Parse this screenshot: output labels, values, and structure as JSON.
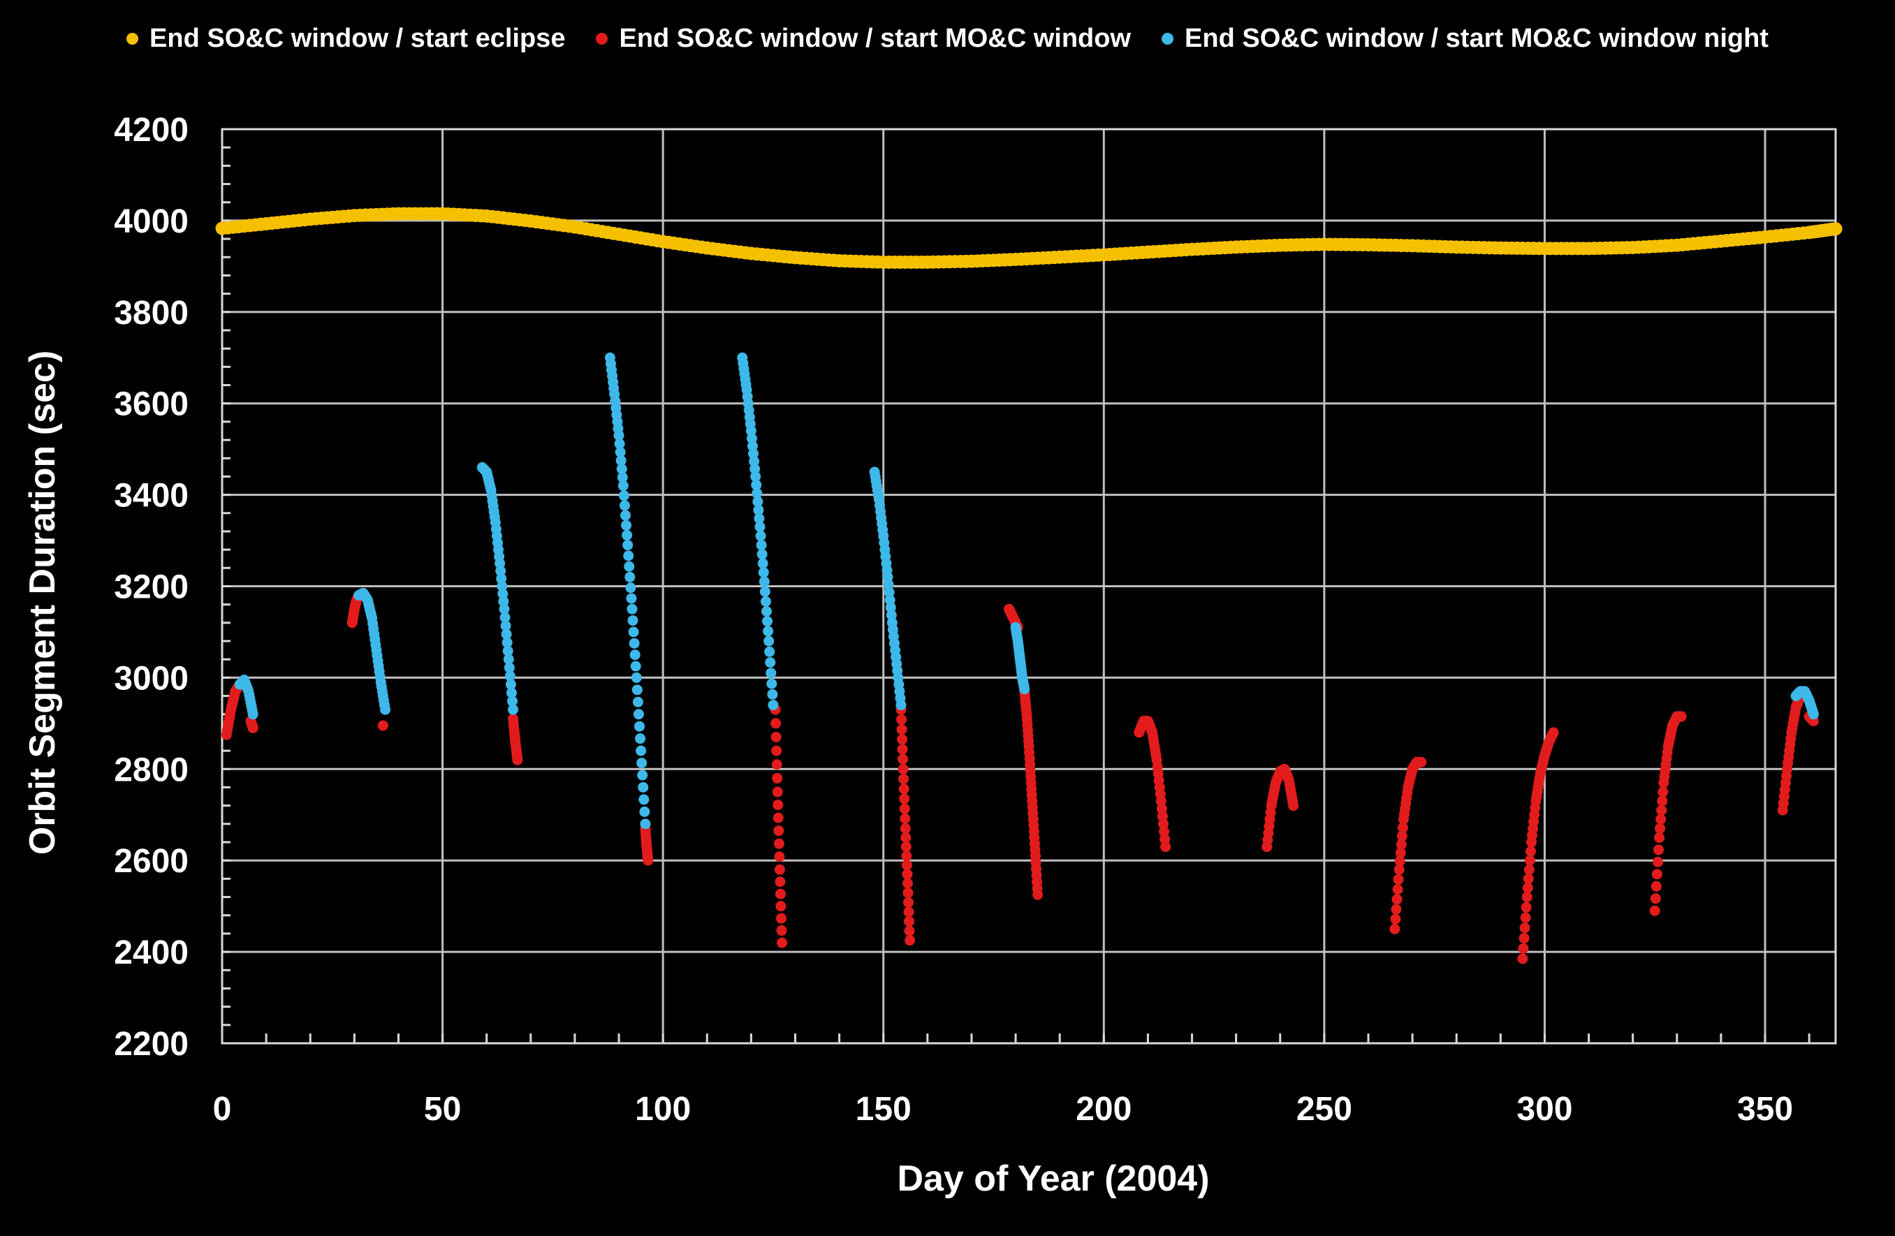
{
  "chart_data": {
    "type": "scatter",
    "xlabel": "Day of Year (2004)",
    "ylabel": "Orbit Segment Duration (sec)",
    "xlim": [
      0,
      366
    ],
    "ylim": [
      2200,
      4200
    ],
    "xticks": [
      "0",
      "50",
      "100",
      "150",
      "200",
      "250",
      "300",
      "350"
    ],
    "yticks": [
      "2200",
      "2400",
      "2600",
      "2800",
      "3000",
      "3200",
      "3400",
      "3600",
      "3800",
      "4000",
      "4200"
    ],
    "grid": true,
    "legend_position": "top-center",
    "series": [
      {
        "name": "End SO&C window / start eclipse",
        "color": "#F5C000",
        "x": [
          0,
          10,
          20,
          30,
          40,
          50,
          60,
          70,
          80,
          90,
          100,
          110,
          120,
          130,
          140,
          150,
          160,
          170,
          180,
          190,
          200,
          210,
          220,
          230,
          240,
          250,
          260,
          270,
          280,
          290,
          300,
          310,
          320,
          330,
          340,
          350,
          360,
          366
        ],
        "y": [
          3983,
          3993,
          4003,
          4011,
          4015,
          4015,
          4010,
          3999,
          3986,
          3970,
          3954,
          3940,
          3928,
          3919,
          3912,
          3909,
          3909,
          3911,
          3915,
          3920,
          3925,
          3931,
          3937,
          3942,
          3946,
          3948,
          3947,
          3945,
          3942,
          3940,
          3939,
          3939,
          3941,
          3946,
          3955,
          3964,
          3974,
          3982
        ]
      },
      {
        "name": "End SO&C window / start MO&C window",
        "color": "#E21C1C",
        "arcs": [
          {
            "x": [
              1,
              2,
              3,
              4
            ],
            "y": [
              2875,
              2930,
              2970,
              2985
            ]
          },
          {
            "x": [
              6.5,
              7
            ],
            "y": [
              2905,
              2890
            ]
          },
          {
            "x": [
              29.5,
              30,
              30.5,
              31
            ],
            "y": [
              3120,
              3150,
              3170,
              3180
            ]
          },
          {
            "x": [
              36.5
            ],
            "y": [
              2895
            ]
          },
          {
            "x": [
              66,
              66.5,
              67
            ],
            "y": [
              2910,
              2860,
              2820
            ]
          },
          {
            "x": [
              96,
              96.3,
              96.6
            ],
            "y": [
              2670,
              2630,
              2600
            ]
          },
          {
            "x": [
              125.5,
              126,
              126.5,
              127
            ],
            "y": [
              2930,
              2750,
              2580,
              2420
            ]
          },
          {
            "x": [
              154,
              154.5,
              155,
              155.5,
              156
            ],
            "y": [
              2930,
              2800,
              2670,
              2550,
              2425
            ]
          },
          {
            "x": [
              178.5,
              179.5,
              180.5
            ],
            "y": [
              3150,
              3130,
              3110
            ]
          },
          {
            "x": [
              182,
              182.5,
              183,
              183.5,
              184,
              184.5,
              185
            ],
            "y": [
              2970,
              2920,
              2850,
              2770,
              2690,
              2610,
              2525
            ]
          },
          {
            "x": [
              208,
              209,
              210,
              211,
              212,
              213,
              214
            ],
            "y": [
              2880,
              2905,
              2905,
              2880,
              2820,
              2730,
              2630
            ]
          },
          {
            "x": [
              237,
              238,
              239,
              240,
              241,
              242,
              243
            ],
            "y": [
              2630,
              2720,
              2770,
              2795,
              2800,
              2775,
              2720
            ]
          },
          {
            "x": [
              266,
              267,
              268,
              269,
              270,
              271,
              272
            ],
            "y": [
              2450,
              2580,
              2690,
              2760,
              2800,
              2815,
              2815
            ]
          },
          {
            "x": [
              295,
              296,
              297,
              298,
              299,
              300,
              301,
              302
            ],
            "y": [
              2385,
              2520,
              2640,
              2730,
              2790,
              2830,
              2860,
              2880
            ]
          },
          {
            "x": [
              325,
              326,
              327,
              328,
              329,
              330,
              331
            ],
            "y": [
              2490,
              2650,
              2770,
              2850,
              2895,
              2915,
              2915
            ]
          },
          {
            "x": [
              354,
              355,
              356,
              357,
              358
            ],
            "y": [
              2710,
              2800,
              2880,
              2935,
              2960
            ]
          },
          {
            "x": [
              360,
              361
            ],
            "y": [
              2915,
              2905
            ]
          }
        ]
      },
      {
        "name": "End SO&C window / start MO&C window night",
        "color": "#3DB8E8",
        "arcs": [
          {
            "x": [
              4,
              5,
              6,
              7
            ],
            "y": [
              2985,
              2995,
              2970,
              2920
            ]
          },
          {
            "x": [
              31,
              32,
              33,
              34,
              35,
              36,
              37
            ],
            "y": [
              3180,
              3185,
              3170,
              3130,
              3060,
              2990,
              2930
            ]
          },
          {
            "x": [
              59,
              60,
              61,
              62,
              63,
              64,
              65,
              66
            ],
            "y": [
              3460,
              3450,
              3410,
              3340,
              3250,
              3150,
              3040,
              2930
            ]
          },
          {
            "x": [
              88,
              89,
              90,
              91,
              92,
              93,
              94,
              95,
              96
            ],
            "y": [
              3700,
              3620,
              3530,
              3420,
              3290,
              3150,
              3000,
              2840,
              2680
            ]
          },
          {
            "x": [
              118,
              119,
              120,
              121,
              122,
              123,
              124,
              125
            ],
            "y": [
              3700,
              3630,
              3540,
              3440,
              3330,
              3210,
              3080,
              2940
            ]
          },
          {
            "x": [
              148,
              149,
              150,
              151,
              152,
              153,
              154
            ],
            "y": [
              3450,
              3390,
              3310,
              3220,
              3120,
              3030,
              2940
            ]
          },
          {
            "x": [
              180,
              180.5,
              181,
              181.5,
              182
            ],
            "y": [
              3110,
              3080,
              3040,
              3000,
              2975
            ]
          },
          {
            "x": [
              357,
              358,
              359,
              360,
              361
            ],
            "y": [
              2960,
              2970,
              2970,
              2950,
              2920
            ]
          }
        ]
      }
    ]
  }
}
